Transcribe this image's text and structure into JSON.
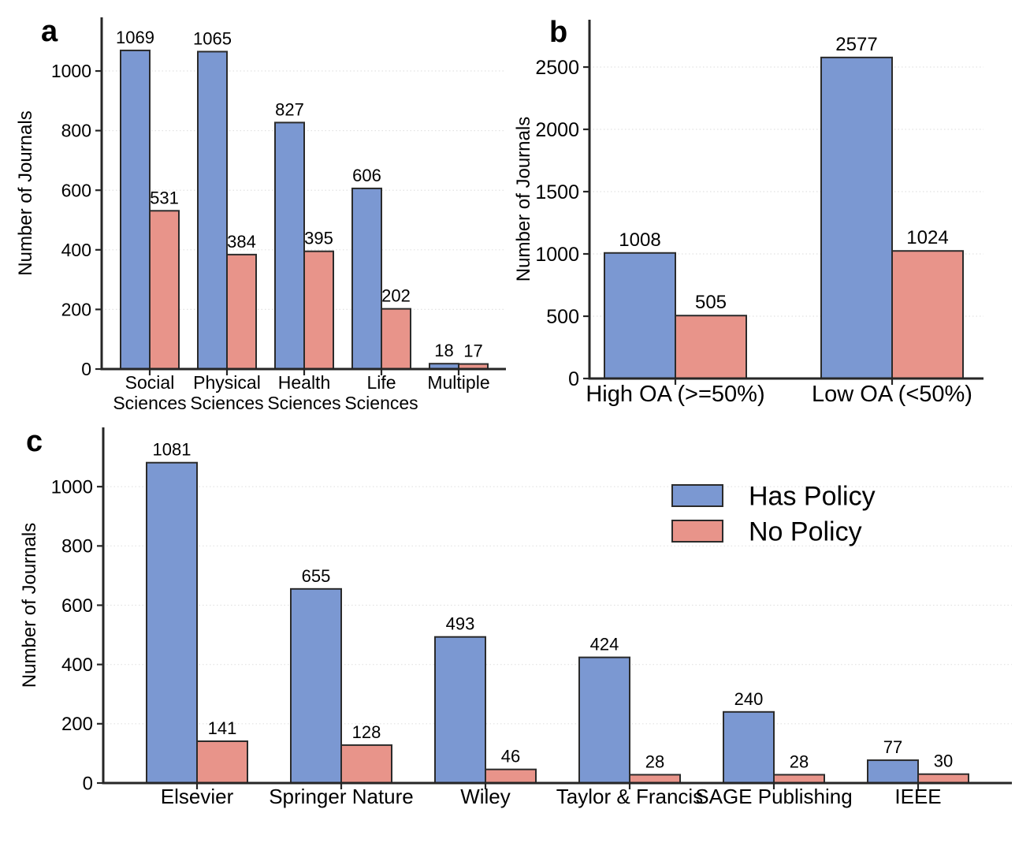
{
  "figure": {
    "background": "#ffffff",
    "description": "Three-panel grouped bar figure of journal policy counts"
  },
  "colors": {
    "has_policy": "#7b98d2",
    "no_policy": "#e8948a",
    "bar_edge": "#2b2b2b",
    "axis": "#262626",
    "grid": "#e2e2e2",
    "text": "#000000"
  },
  "legend": {
    "items": [
      {
        "label": "Has Policy",
        "color_key": "has_policy"
      },
      {
        "label": "No Policy",
        "color_key": "no_policy"
      }
    ]
  },
  "chart_data": [
    {
      "panel": "a",
      "type": "bar",
      "title": "",
      "xlabel": "",
      "ylabel": "Number of Journals",
      "categories": [
        "Social\nSciences",
        "Physical\nSciences",
        "Health\nSciences",
        "Life\nSciences",
        "Multiple"
      ],
      "series": [
        {
          "name": "Has Policy",
          "color_key": "has_policy",
          "values": [
            1069,
            1065,
            827,
            606,
            18
          ]
        },
        {
          "name": "No Policy",
          "color_key": "no_policy",
          "values": [
            531,
            384,
            395,
            202,
            17
          ]
        }
      ],
      "yticks": [
        0,
        200,
        400,
        600,
        800,
        1000
      ],
      "ylim": [
        0,
        1180
      ],
      "grid": true,
      "legend": false
    },
    {
      "panel": "b",
      "type": "bar",
      "title": "",
      "xlabel": "",
      "ylabel": "Number of Journals",
      "categories": [
        "High OA (>=50%)",
        "Low OA (<50%)"
      ],
      "series": [
        {
          "name": "Has Policy",
          "color_key": "has_policy",
          "values": [
            1008,
            2577
          ]
        },
        {
          "name": "No Policy",
          "color_key": "no_policy",
          "values": [
            505,
            1024
          ]
        }
      ],
      "yticks": [
        0,
        500,
        1000,
        1500,
        2000,
        2500
      ],
      "ylim": [
        0,
        2880
      ],
      "grid": true,
      "legend": false
    },
    {
      "panel": "c",
      "type": "bar",
      "title": "",
      "xlabel": "",
      "ylabel": "Number of Journals",
      "categories": [
        "Elsevier",
        "Springer Nature",
        "Wiley",
        "Taylor & Francis",
        "SAGE Publishing",
        "IEEE"
      ],
      "series": [
        {
          "name": "Has Policy",
          "color_key": "has_policy",
          "values": [
            1081,
            655,
            493,
            424,
            240,
            77
          ]
        },
        {
          "name": "No Policy",
          "color_key": "no_policy",
          "values": [
            141,
            128,
            46,
            28,
            28,
            30
          ]
        }
      ],
      "yticks": [
        0,
        200,
        400,
        600,
        800,
        1000
      ],
      "ylim": [
        0,
        1200
      ],
      "grid": true,
      "legend": true,
      "legend_position": "upper right"
    }
  ]
}
